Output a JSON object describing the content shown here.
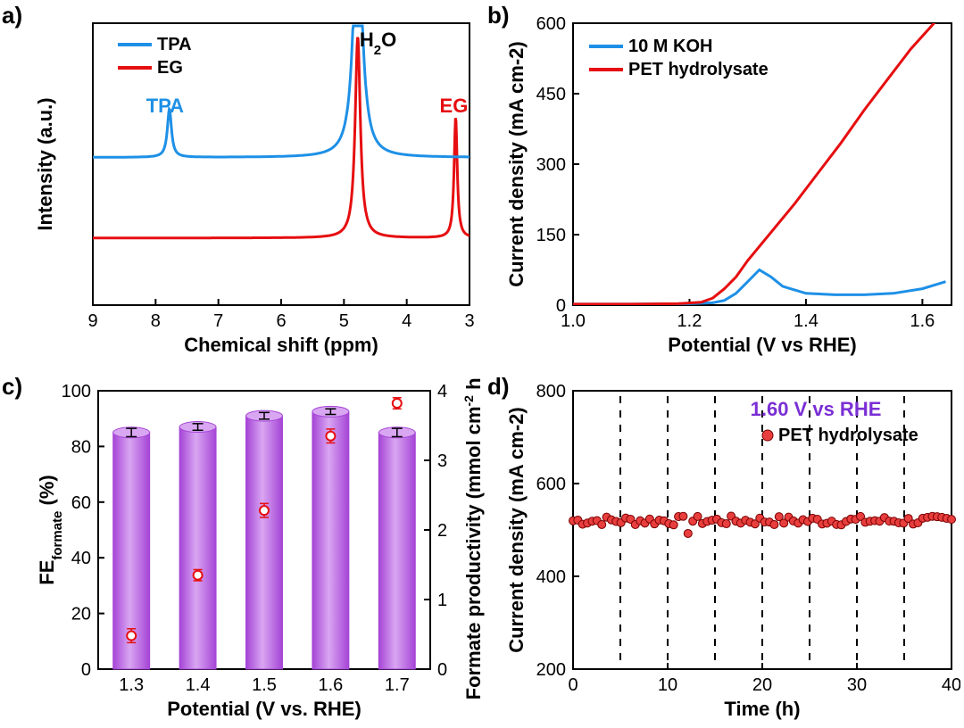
{
  "labels": {
    "a": "a)",
    "b": "b)",
    "c": "c)",
    "d": "d)"
  },
  "colors": {
    "blue": "#1e90e6",
    "red": "#e60e10",
    "purple": "#a544d6",
    "purpleLight": "#d9a6f2",
    "black": "#000000",
    "markerFill": "#e83e3e"
  },
  "panelA": {
    "type": "line",
    "xlabel": "Chemical shift (ppm)",
    "ylabel": "Intensity (a.u.)",
    "xlim": [
      9,
      3
    ],
    "xticks": [
      9,
      8,
      7,
      6,
      5,
      4,
      3
    ],
    "legend": [
      {
        "label": "TPA",
        "color": "#1e90e6"
      },
      {
        "label": "EG",
        "color": "#e60e10"
      }
    ],
    "peak_annotations": [
      {
        "text": "TPA",
        "x": 7.85,
        "color": "#1e90e6"
      },
      {
        "text": "H",
        "sub": "2",
        "after": "O",
        "x": 4.75,
        "color": "#000000"
      },
      {
        "text": "EG",
        "x": 3.25,
        "color": "#e60e10"
      }
    ],
    "series": {
      "tpa": {
        "baseline": 0.55,
        "color": "#1e90e6",
        "peaks": [
          {
            "x": 7.78,
            "h": 0.18,
            "w": 0.04
          },
          {
            "x": 4.78,
            "h": 0.95,
            "w": 0.08
          }
        ]
      },
      "eg": {
        "baseline": 0.25,
        "color": "#e60e10",
        "peaks": [
          {
            "x": 4.78,
            "h": 0.75,
            "w": 0.05
          },
          {
            "x": 3.22,
            "h": 0.45,
            "w": 0.03
          }
        ]
      }
    },
    "fontsize_axis": 22,
    "fontsize_tick": 20,
    "linewidth": 3
  },
  "panelB": {
    "type": "line",
    "xlabel": "Potential (V vs RHE)",
    "ylabel": "Current density (mA cm-2)",
    "xlim": [
      1.0,
      1.65
    ],
    "ylim": [
      0,
      600
    ],
    "xticks": [
      1.0,
      1.2,
      1.4,
      1.6
    ],
    "yticks": [
      0,
      150,
      300,
      450,
      600
    ],
    "legend": [
      {
        "label": "10 M KOH",
        "color": "#1e90e6"
      },
      {
        "label": "PET hydrolysate",
        "color": "#e60e10"
      }
    ],
    "series": {
      "koh": {
        "color": "#1e90e6",
        "pts": [
          [
            1.0,
            2
          ],
          [
            1.1,
            2
          ],
          [
            1.2,
            3
          ],
          [
            1.24,
            5
          ],
          [
            1.26,
            10
          ],
          [
            1.28,
            25
          ],
          [
            1.3,
            50
          ],
          [
            1.32,
            75
          ],
          [
            1.34,
            60
          ],
          [
            1.36,
            40
          ],
          [
            1.4,
            25
          ],
          [
            1.45,
            22
          ],
          [
            1.5,
            22
          ],
          [
            1.55,
            25
          ],
          [
            1.6,
            35
          ],
          [
            1.64,
            50
          ]
        ]
      },
      "pet": {
        "color": "#e60e10",
        "pts": [
          [
            1.0,
            2
          ],
          [
            1.1,
            2
          ],
          [
            1.18,
            3
          ],
          [
            1.22,
            6
          ],
          [
            1.24,
            15
          ],
          [
            1.26,
            35
          ],
          [
            1.28,
            60
          ],
          [
            1.3,
            95
          ],
          [
            1.34,
            155
          ],
          [
            1.38,
            215
          ],
          [
            1.42,
            280
          ],
          [
            1.46,
            345
          ],
          [
            1.5,
            415
          ],
          [
            1.54,
            480
          ],
          [
            1.58,
            545
          ],
          [
            1.62,
            600
          ],
          [
            1.64,
            630
          ]
        ]
      }
    },
    "linewidth": 3
  },
  "panelC": {
    "type": "bar+scatter",
    "xlabel": "Potential (V vs. RHE)",
    "ylabel": "FE",
    "ylabel_sub": "formate",
    "ylabel_after": " (%)",
    "y2label": "Formate productivity (mmol cm",
    "y2label_sup": "-2",
    "y2label_after": " h",
    "y2label_sup2": "-1",
    "y2label_after2": ")",
    "categories": [
      "1.3",
      "1.4",
      "1.5",
      "1.6",
      "1.7"
    ],
    "ylim": [
      0,
      100
    ],
    "yticks": [
      0,
      20,
      40,
      60,
      80,
      100
    ],
    "y2lim": [
      0,
      4
    ],
    "y2ticks": [
      0,
      1,
      2,
      3,
      4
    ],
    "bars": {
      "values": [
        85,
        87,
        91,
        92.5,
        85
      ],
      "err": [
        1.5,
        1.2,
        1.2,
        1.0,
        1.5
      ],
      "fill": "#a544d6",
      "fillLight": "#d9a6f2",
      "width": 0.55
    },
    "points": {
      "values": [
        0.48,
        1.35,
        2.28,
        3.35,
        3.82
      ],
      "err": [
        0.1,
        0.08,
        0.1,
        0.1,
        0.08
      ],
      "color": "#e60e10"
    }
  },
  "panelD": {
    "type": "scatter",
    "xlabel": "Time (h)",
    "ylabel": "Current density (mA cm-2)",
    "xlim": [
      0,
      40
    ],
    "ylim": [
      200,
      800
    ],
    "xticks": [
      0,
      10,
      20,
      30,
      40
    ],
    "yticks": [
      200,
      400,
      600,
      800
    ],
    "title": "1.60 V vs RHE",
    "title_color": "#7a2fd4",
    "legend": {
      "label": "PET hydrolysate",
      "marker_fill": "#e83e3e"
    },
    "vlines": [
      5,
      10,
      15,
      20,
      25,
      30,
      35
    ],
    "baseline": 520,
    "jitter": 10,
    "n": 80,
    "marker_r": 4.5
  }
}
